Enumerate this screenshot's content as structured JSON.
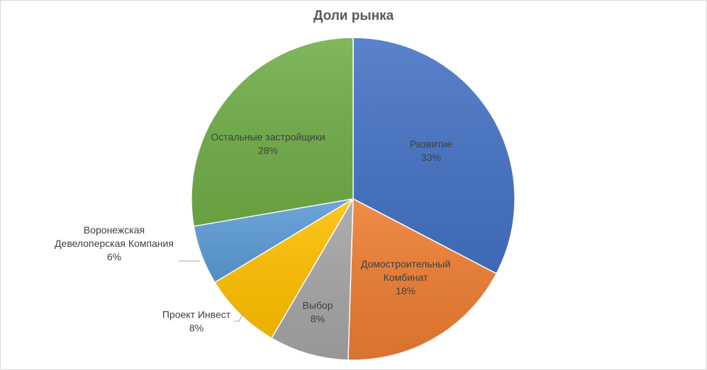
{
  "chart_data": {
    "type": "pie",
    "title": "Доли рынка",
    "slices": [
      {
        "name": "Развитие",
        "value": 33,
        "label": "33%",
        "color": "#4472C4",
        "label_lines": [
          "Развитие"
        ]
      },
      {
        "name": "Домостроительный Комбинат",
        "value": 18,
        "label": "18%",
        "color": "#ED7D31",
        "label_lines": [
          "Домостроительный",
          "Комбинат"
        ]
      },
      {
        "name": "Выбор",
        "value": 8,
        "label": "8%",
        "color": "#A5A5A5",
        "label_lines": [
          "Выбор"
        ]
      },
      {
        "name": "Проект Инвест",
        "value": 8,
        "label": "8%",
        "color": "#FFC000",
        "label_lines": [
          "Проект Инвест"
        ]
      },
      {
        "name": "Воронежская Девелоперская Компания",
        "value": 6,
        "label": "6%",
        "color": "#5B9BD5",
        "label_lines": [
          "Воронежская",
          "Девелоперская Компания"
        ]
      },
      {
        "name": "Остальные застройщики",
        "value": 28,
        "label": "28%",
        "color": "#70AD47",
        "label_lines": [
          "Остальные застройщики"
        ]
      }
    ],
    "start_angle": "top",
    "direction": "clockwise",
    "legend": "none",
    "data_labels": "category-and-percent"
  }
}
